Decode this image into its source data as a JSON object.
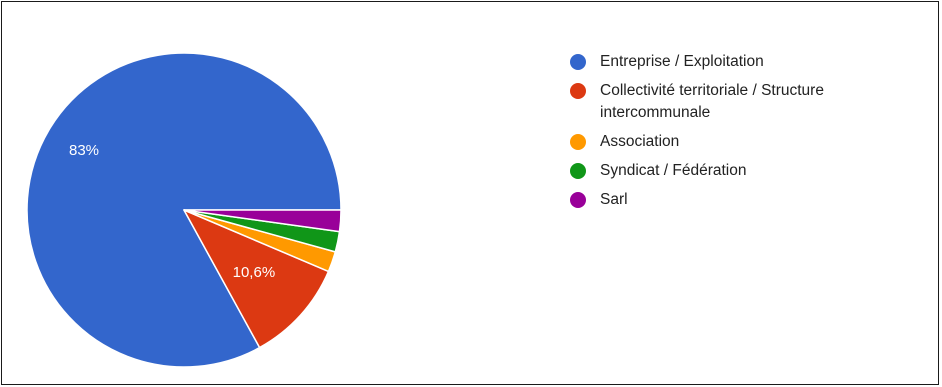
{
  "chart_data": {
    "type": "pie",
    "slices": [
      {
        "name": "Entreprise / Exploitation",
        "value": 83,
        "label": "83%",
        "color": "#3366cc"
      },
      {
        "name": "Collectivité territoriale / Structure intercommunale",
        "value": 10.6,
        "label": "10,6%",
        "color": "#dc3912"
      },
      {
        "name": "Association",
        "value": 2.1,
        "label": "",
        "color": "#ff9900"
      },
      {
        "name": "Syndicat / Fédération",
        "value": 2.1,
        "label": "",
        "color": "#109618"
      },
      {
        "name": "Sarl",
        "value": 2.2,
        "label": "",
        "color": "#990099"
      }
    ],
    "start_angle_deg": 0,
    "direction": "counterclockwise",
    "legend_position": "right"
  }
}
